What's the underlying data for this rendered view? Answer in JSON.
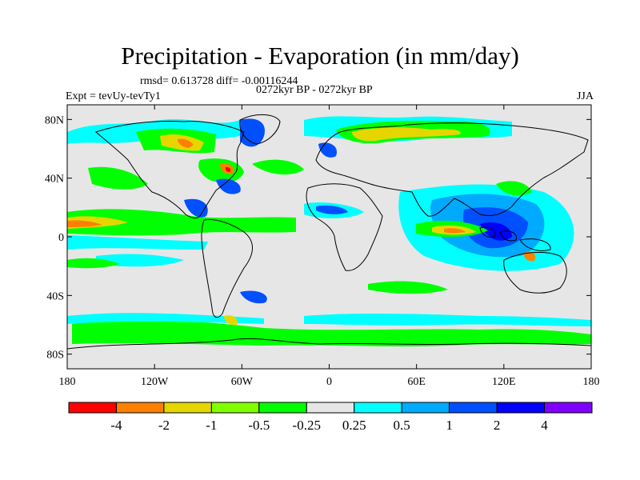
{
  "title": "Precipitation - Evaporation (in mm/day)",
  "stats": "rmsd= 0.613728 diff= -0.00116244",
  "period": "0272kyr BP - 0272kyr BP",
  "experiment": "Expt = tevUy-tevTy1",
  "season": "JJA",
  "map": {
    "lon_range": [
      -180,
      180
    ],
    "lat_range": [
      -90,
      90
    ],
    "lat_ticks": [
      {
        "value": 80,
        "label": "80N"
      },
      {
        "value": 40,
        "label": "40N"
      },
      {
        "value": 0,
        "label": "0"
      },
      {
        "value": -40,
        "label": "40S"
      },
      {
        "value": -80,
        "label": "80S"
      }
    ],
    "lon_ticks": [
      {
        "value": -180,
        "label": "180"
      },
      {
        "value": -120,
        "label": "120W"
      },
      {
        "value": -60,
        "label": "60W"
      },
      {
        "value": 0,
        "label": "0"
      },
      {
        "value": 60,
        "label": "60E"
      },
      {
        "value": 120,
        "label": "120E"
      },
      {
        "value": 180,
        "label": "180"
      }
    ],
    "background_color": "#e6e6e6"
  },
  "colorbar": {
    "colors": [
      "#ff0000",
      "#ff8000",
      "#e6d600",
      "#80ff00",
      "#00ff00",
      "#e6e6e6",
      "#00ffff",
      "#00aaff",
      "#0050ff",
      "#0000ff",
      "#8000ff"
    ],
    "labels": [
      "-4",
      "-2",
      "-1",
      "-0.5",
      "-0.25",
      "0.25",
      "0.5",
      "1",
      "2",
      "4"
    ]
  }
}
